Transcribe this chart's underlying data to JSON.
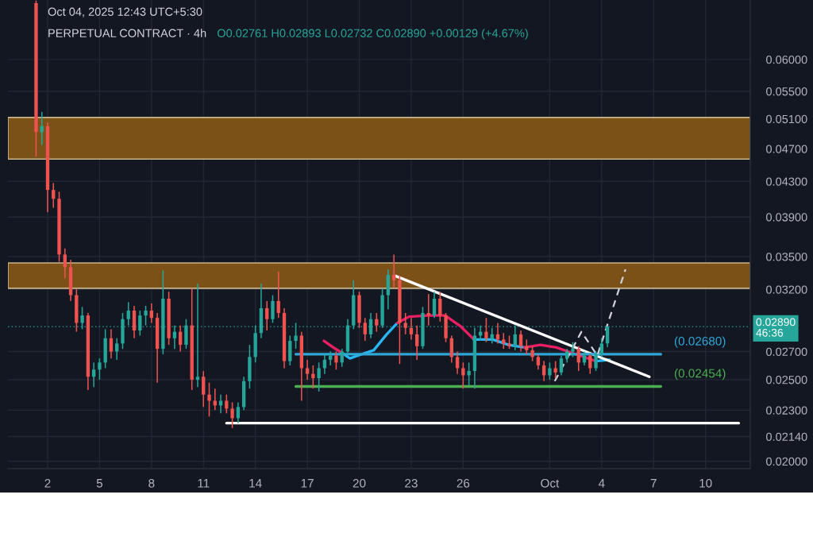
{
  "chart_data": {
    "type": "candlestick",
    "title": "PERPETUAL CONTRACT · 4h",
    "annotations": [
      "Oct 04, 2025 12:43 UTC+5:30",
      "O0.02761 H0.02893 L0.02732 C0.02890 +0.00129 (+4.67%)"
    ],
    "x": [
      "2025-09-01T08:00",
      "2025-09-01T16:00",
      "2025-09-02T00:00",
      "2025-09-02T08:00",
      "2025-09-02T16:00",
      "2025-09-03T00:00",
      "2025-09-03T08:00",
      "2025-09-03T16:00",
      "2025-09-04T00:00",
      "2025-09-04T08:00",
      "2025-09-04T16:00",
      "2025-09-05T00:00",
      "2025-09-05T08:00",
      "2025-09-05T16:00",
      "2025-09-06T00:00",
      "2025-09-06T08:00",
      "2025-09-06T16:00",
      "2025-09-07T00:00",
      "2025-09-07T08:00",
      "2025-09-07T16:00",
      "2025-09-08T00:00",
      "2025-09-08T08:00",
      "2025-09-08T16:00",
      "2025-09-09T00:00",
      "2025-09-09T08:00",
      "2025-09-09T16:00",
      "2025-09-10T00:00",
      "2025-09-10T08:00",
      "2025-09-10T16:00",
      "2025-09-11T00:00",
      "2025-09-11T08:00",
      "2025-09-11T16:00",
      "2025-09-12T00:00",
      "2025-09-12T08:00",
      "2025-09-12T16:00",
      "2025-09-13T00:00",
      "2025-09-13T08:00",
      "2025-09-13T16:00",
      "2025-09-14T00:00",
      "2025-09-14T08:00",
      "2025-09-14T16:00",
      "2025-09-15T00:00",
      "2025-09-15T08:00",
      "2025-09-15T16:00",
      "2025-09-16T00:00",
      "2025-09-16T08:00",
      "2025-09-16T16:00",
      "2025-09-17T00:00",
      "2025-09-17T08:00",
      "2025-09-17T16:00",
      "2025-09-18T00:00",
      "2025-09-18T08:00",
      "2025-09-18T16:00",
      "2025-09-19T00:00",
      "2025-09-19T08:00",
      "2025-09-19T16:00",
      "2025-09-20T00:00",
      "2025-09-20T08:00",
      "2025-09-20T16:00",
      "2025-09-21T00:00",
      "2025-09-21T08:00",
      "2025-09-21T16:00",
      "2025-09-22T00:00",
      "2025-09-22T08:00",
      "2025-09-22T16:00",
      "2025-09-23T00:00",
      "2025-09-23T08:00",
      "2025-09-23T16:00",
      "2025-09-24T00:00",
      "2025-09-24T08:00",
      "2025-09-24T16:00",
      "2025-09-25T00:00",
      "2025-09-25T08:00",
      "2025-09-25T16:00",
      "2025-09-26T00:00",
      "2025-09-26T08:00",
      "2025-09-26T16:00",
      "2025-09-27T00:00",
      "2025-09-27T08:00",
      "2025-09-27T16:00",
      "2025-09-28T00:00",
      "2025-09-28T08:00",
      "2025-09-28T16:00",
      "2025-09-29T00:00",
      "2025-09-29T08:00",
      "2025-09-29T16:00",
      "2025-09-30T00:00",
      "2025-09-30T08:00",
      "2025-09-30T16:00",
      "2025-10-01T00:00",
      "2025-10-01T08:00",
      "2025-10-01T16:00",
      "2025-10-02T00:00",
      "2025-10-02T08:00",
      "2025-10-02T16:00",
      "2025-10-03T00:00",
      "2025-10-03T08:00",
      "2025-10-03T16:00",
      "2025-10-04T00:00",
      "2025-10-04T08:00"
    ],
    "ohlc": [
      [
        0.07,
        0.0705,
        0.046,
        0.0492
      ],
      [
        0.0492,
        0.052,
        0.0475,
        0.05
      ],
      [
        0.05,
        0.0505,
        0.0395,
        0.042
      ],
      [
        0.042,
        0.0428,
        0.04,
        0.041
      ],
      [
        0.041,
        0.0418,
        0.0345,
        0.0352
      ],
      [
        0.0352,
        0.0358,
        0.033,
        0.034
      ],
      [
        0.034,
        0.0347,
        0.031,
        0.0315
      ],
      [
        0.0315,
        0.032,
        0.0285,
        0.0292
      ],
      [
        0.0292,
        0.0305,
        0.0287,
        0.0298
      ],
      [
        0.0298,
        0.03,
        0.0243,
        0.0252
      ],
      [
        0.0252,
        0.0262,
        0.0245,
        0.0257
      ],
      [
        0.0257,
        0.0265,
        0.025,
        0.0262
      ],
      [
        0.0262,
        0.0287,
        0.0258,
        0.028
      ],
      [
        0.028,
        0.0287,
        0.0265,
        0.027
      ],
      [
        0.027,
        0.028,
        0.0264,
        0.0276
      ],
      [
        0.0276,
        0.03,
        0.0272,
        0.0295
      ],
      [
        0.0295,
        0.0309,
        0.029,
        0.0302
      ],
      [
        0.0302,
        0.0306,
        0.028,
        0.0286
      ],
      [
        0.0286,
        0.0302,
        0.0282,
        0.0298
      ],
      [
        0.0298,
        0.0306,
        0.029,
        0.0302
      ],
      [
        0.0302,
        0.0308,
        0.0292,
        0.0296
      ],
      [
        0.0296,
        0.03,
        0.0248,
        0.0272
      ],
      [
        0.0272,
        0.0337,
        0.0268,
        0.0312
      ],
      [
        0.0312,
        0.0318,
        0.0275,
        0.028
      ],
      [
        0.028,
        0.029,
        0.0272,
        0.0285
      ],
      [
        0.0285,
        0.029,
        0.027,
        0.0275
      ],
      [
        0.0275,
        0.0295,
        0.0272,
        0.029
      ],
      [
        0.029,
        0.0321,
        0.0243,
        0.025
      ],
      [
        0.025,
        0.0325,
        0.0245,
        0.0252
      ],
      [
        0.0252,
        0.0256,
        0.0232,
        0.024
      ],
      [
        0.024,
        0.0248,
        0.0226,
        0.0236
      ],
      [
        0.0236,
        0.0244,
        0.023,
        0.0233
      ],
      [
        0.0233,
        0.024,
        0.0228,
        0.0236
      ],
      [
        0.0236,
        0.024,
        0.0228,
        0.0231
      ],
      [
        0.0231,
        0.0235,
        0.0219,
        0.0225
      ],
      [
        0.0225,
        0.0235,
        0.0222,
        0.0232
      ],
      [
        0.0232,
        0.0252,
        0.023,
        0.0249
      ],
      [
        0.0249,
        0.0275,
        0.0244,
        0.0266
      ],
      [
        0.0266,
        0.029,
        0.0262,
        0.0284
      ],
      [
        0.0284,
        0.0325,
        0.028,
        0.0304
      ],
      [
        0.0304,
        0.031,
        0.0286,
        0.0295
      ],
      [
        0.0295,
        0.0315,
        0.0292,
        0.031
      ],
      [
        0.031,
        0.0336,
        0.0296,
        0.03
      ],
      [
        0.03,
        0.0304,
        0.0258,
        0.0263
      ],
      [
        0.0263,
        0.0282,
        0.026,
        0.0278
      ],
      [
        0.0278,
        0.0292,
        0.0272,
        0.0282
      ],
      [
        0.0282,
        0.0285,
        0.0236,
        0.0258
      ],
      [
        0.0258,
        0.0264,
        0.025,
        0.0254
      ],
      [
        0.0254,
        0.026,
        0.0244,
        0.0251
      ],
      [
        0.0251,
        0.0262,
        0.0242,
        0.0258
      ],
      [
        0.0258,
        0.0268,
        0.0254,
        0.0264
      ],
      [
        0.0264,
        0.027,
        0.026,
        0.0267
      ],
      [
        0.0267,
        0.027,
        0.0257,
        0.0262
      ],
      [
        0.0262,
        0.0272,
        0.0259,
        0.027
      ],
      [
        0.027,
        0.0295,
        0.0268,
        0.029
      ],
      [
        0.029,
        0.0328,
        0.0287,
        0.0315
      ],
      [
        0.0315,
        0.0318,
        0.0288,
        0.0292
      ],
      [
        0.0292,
        0.0296,
        0.0278,
        0.0283
      ],
      [
        0.0283,
        0.03,
        0.028,
        0.0295
      ],
      [
        0.0295,
        0.03,
        0.0285,
        0.029
      ],
      [
        0.029,
        0.0321,
        0.0288,
        0.0315
      ],
      [
        0.0315,
        0.0338,
        0.0303,
        0.0333
      ],
      [
        0.0333,
        0.0352,
        0.0322,
        0.0328
      ],
      [
        0.0328,
        0.0332,
        0.0261,
        0.0292
      ],
      [
        0.0292,
        0.03,
        0.0283,
        0.0288
      ],
      [
        0.0288,
        0.0296,
        0.0279,
        0.0283
      ],
      [
        0.0283,
        0.029,
        0.0264,
        0.0274
      ],
      [
        0.0274,
        0.0305,
        0.0272,
        0.03
      ],
      [
        0.03,
        0.0316,
        0.029,
        0.0298
      ],
      [
        0.0298,
        0.0318,
        0.0296,
        0.0312
      ],
      [
        0.0312,
        0.0318,
        0.0293,
        0.0298
      ],
      [
        0.0298,
        0.03,
        0.0277,
        0.028
      ],
      [
        0.028,
        0.0282,
        0.0262,
        0.0266
      ],
      [
        0.0266,
        0.027,
        0.0254,
        0.0258
      ],
      [
        0.0258,
        0.0262,
        0.0244,
        0.0253
      ],
      [
        0.0253,
        0.0262,
        0.0246,
        0.0256
      ],
      [
        0.0256,
        0.0288,
        0.0244,
        0.0282
      ],
      [
        0.0282,
        0.029,
        0.0278,
        0.0285
      ],
      [
        0.0285,
        0.0296,
        0.0277,
        0.028
      ],
      [
        0.028,
        0.0288,
        0.0276,
        0.0283
      ],
      [
        0.0283,
        0.0292,
        0.0276,
        0.0279
      ],
      [
        0.0279,
        0.0284,
        0.0272,
        0.0276
      ],
      [
        0.0276,
        0.0282,
        0.0272,
        0.0274
      ],
      [
        0.0274,
        0.029,
        0.0271,
        0.0283
      ],
      [
        0.0283,
        0.0286,
        0.027,
        0.0274
      ],
      [
        0.0274,
        0.0279,
        0.0268,
        0.0271
      ],
      [
        0.0271,
        0.0274,
        0.0263,
        0.0266
      ],
      [
        0.0266,
        0.0268,
        0.0257,
        0.026
      ],
      [
        0.026,
        0.0263,
        0.0249,
        0.0253
      ],
      [
        0.0253,
        0.0262,
        0.025,
        0.0258
      ],
      [
        0.0258,
        0.0263,
        0.0251,
        0.0255
      ],
      [
        0.0255,
        0.0267,
        0.0253,
        0.0265
      ],
      [
        0.0265,
        0.0272,
        0.0262,
        0.027
      ],
      [
        0.027,
        0.0277,
        0.0266,
        0.0272
      ],
      [
        0.0272,
        0.0274,
        0.0256,
        0.0262
      ],
      [
        0.0262,
        0.027,
        0.026,
        0.0267
      ],
      [
        0.0267,
        0.0268,
        0.0254,
        0.0258
      ],
      [
        0.0258,
        0.027,
        0.0256,
        0.0268
      ],
      [
        0.0268,
        0.028,
        0.0266,
        0.0276
      ],
      [
        0.02761,
        0.02893,
        0.02732,
        0.0289
      ]
    ],
    "colors": [
      "#ef5350",
      "#26a69a",
      "#ef5350",
      "#ef5350",
      "#ef5350",
      "#ef5350",
      "#ef5350",
      "#ef5350",
      "#26a69a",
      "#ef5350",
      "#26a69a",
      "#26a69a",
      "#26a69a",
      "#ef5350",
      "#26a69a",
      "#26a69a",
      "#26a69a",
      "#ef5350",
      "#26a69a",
      "#26a69a",
      "#ef5350",
      "#ef5350",
      "#26a69a",
      "#ef5350",
      "#26a69a",
      "#ef5350",
      "#26a69a",
      "#ef5350",
      "#26a69a",
      "#ef5350",
      "#ef5350",
      "#ef5350",
      "#26a69a",
      "#ef5350",
      "#ef5350",
      "#26a69a",
      "#26a69a",
      "#26a69a",
      "#26a69a",
      "#26a69a",
      "#ef5350",
      "#26a69a",
      "#ef5350",
      "#ef5350",
      "#26a69a",
      "#26a69a",
      "#ef5350",
      "#ef5350",
      "#ef5350",
      "#26a69a",
      "#26a69a",
      "#26a69a",
      "#ef5350",
      "#26a69a",
      "#26a69a",
      "#26a69a",
      "#ef5350",
      "#ef5350",
      "#26a69a",
      "#ef5350",
      "#26a69a",
      "#26a69a",
      "#ef5350",
      "#ef5350",
      "#ef5350",
      "#ef5350",
      "#ef5350",
      "#26a69a",
      "#ef5350",
      "#26a69a",
      "#ef5350",
      "#ef5350",
      "#ef5350",
      "#ef5350",
      "#ef5350",
      "#26a69a",
      "#26a69a",
      "#26a69a",
      "#ef5350",
      "#26a69a",
      "#ef5350",
      "#ef5350",
      "#ef5350",
      "#26a69a",
      "#ef5350",
      "#ef5350",
      "#ef5350",
      "#ef5350",
      "#ef5350",
      "#26a69a",
      "#ef5350",
      "#26a69a",
      "#26a69a",
      "#26a69a",
      "#ef5350",
      "#26a69a",
      "#ef5350",
      "#26a69a",
      "#26a69a",
      "#26a69a"
    ],
    "series": [
      {
        "type": "line",
        "color": "#e91e63",
        "x": [
          "2025-09-17T23:00",
          "2025-09-18T12:00",
          "2025-09-19T00:00"
        ],
        "values": [
          0.0278,
          0.0273,
          0.0269
        ]
      },
      {
        "type": "line",
        "color": "#29b6f6",
        "x": [
          "2025-09-19T00:00",
          "2025-09-19T11:00",
          "2025-09-20T03:00",
          "2025-09-20T20:00",
          "2025-09-21T14:00",
          "2025-09-22T05:00"
        ],
        "values": [
          0.0269,
          0.0265,
          0.0268,
          0.0271,
          0.0283,
          0.0292
        ]
      },
      {
        "type": "line",
        "color": "#e91e63",
        "x": [
          "2025-09-22T05:00",
          "2025-09-22T21:00",
          "2025-09-24T01:00",
          "2025-09-24T23:00",
          "2025-09-25T21:00",
          "2025-09-26T15:00"
        ],
        "values": [
          0.0292,
          0.0297,
          0.0298,
          0.0298,
          0.0289,
          0.0279
        ]
      },
      {
        "type": "line",
        "color": "#29b6f6",
        "x": [
          "2025-09-26T15:00",
          "2025-09-27T17:00",
          "2025-09-28T15:00",
          "2025-09-29T13:00"
        ],
        "values": [
          0.0279,
          0.0279,
          0.0275,
          0.0273
        ]
      },
      {
        "type": "line",
        "color": "#e91e63",
        "x": [
          "2025-09-29T13:00",
          "2025-09-30T11:00",
          "2025-10-01T09:00",
          "2025-10-02T07:00",
          "2025-10-03T16:00"
        ],
        "values": [
          0.0273,
          0.0275,
          0.0273,
          0.0269,
          0.0263
        ]
      },
      {
        "type": "line",
        "color": "#29b6f6",
        "x": [
          "2025-10-03T16:00",
          "2025-10-04T11:00"
        ],
        "values": [
          0.0263,
          0.0264
        ]
      },
      {
        "type": "line",
        "color": "#ffffff",
        "x": [
          "2025-09-22T02:00",
          "2025-10-06T18:00"
        ],
        "values": [
          0.0332,
          0.0252
        ]
      },
      {
        "type": "line",
        "color": "#ffffff",
        "x": [
          "2025-09-12T08:00",
          "2025-10-11T22:00"
        ],
        "values": [
          0.0222,
          0.0222
        ]
      },
      {
        "type": "line",
        "name": "(0.02680)",
        "color": "#2fa8d8",
        "x": [
          "2025-09-16T08:00",
          "2025-10-07T10:00"
        ],
        "values": [
          0.0268,
          0.0268
        ]
      },
      {
        "type": "line",
        "name": "(0.02454)",
        "color": "#4caf50",
        "x": [
          "2025-09-16T08:00",
          "2025-10-07T10:00"
        ],
        "values": [
          0.02454,
          0.02454
        ]
      },
      {
        "type": "line",
        "color": "#d1d4dc",
        "line_style": "dashed",
        "x": [
          "2025-10-01T07:00",
          "2025-10-02T20:00",
          "2025-10-03T18:00",
          "2025-10-05T09:00"
        ],
        "values": [
          0.0249,
          0.0285,
          0.0267,
          0.0338
        ]
      }
    ],
    "ref_lines": [
      {
        "axis": "y",
        "value": 0.0289,
        "label": "0.02890\n46:36",
        "color": "#26a69a",
        "line_style": "dotted"
      }
    ],
    "bands": [
      {
        "axis": "y",
        "from": 0.0321,
        "to": 0.0344,
        "color": "#7b5117"
      },
      {
        "axis": "y",
        "from": 0.0457,
        "to": 0.0512,
        "color": "#7b5117"
      }
    ],
    "xlim": [
      "2025-08-30T17:00",
      "2025-10-12T14:00"
    ],
    "xticks": [
      {
        "value": "2025-09-02",
        "label": "2"
      },
      {
        "value": "2025-09-05",
        "label": "5"
      },
      {
        "value": "2025-09-08",
        "label": "8"
      },
      {
        "value": "2025-09-11",
        "label": "11"
      },
      {
        "value": "2025-09-14",
        "label": "14"
      },
      {
        "value": "2025-09-17",
        "label": "17"
      },
      {
        "value": "2025-09-20",
        "label": "20"
      },
      {
        "value": "2025-09-23",
        "label": "23"
      },
      {
        "value": "2025-09-26",
        "label": "26"
      },
      {
        "value": "2025-10-01",
        "label": "Oct"
      },
      {
        "value": "2025-10-04",
        "label": "4"
      },
      {
        "value": "2025-10-07",
        "label": "7"
      },
      {
        "value": "2025-10-10",
        "label": "10"
      }
    ],
    "ylim": [
      0.0196,
      0.0706
    ],
    "yticks": [
      {
        "value": 0.02,
        "label": "0.02000"
      },
      {
        "value": 0.0214,
        "label": "0.02140"
      },
      {
        "value": 0.023,
        "label": "0.02300"
      },
      {
        "value": 0.025,
        "label": "0.02500"
      },
      {
        "value": 0.027,
        "label": "0.02700"
      },
      {
        "value": 0.032,
        "label": "0.03200"
      },
      {
        "value": 0.035,
        "label": "0.03500"
      },
      {
        "value": 0.039,
        "label": "0.03900"
      },
      {
        "value": 0.043,
        "label": "0.04300"
      },
      {
        "value": 0.047,
        "label": "0.04700"
      },
      {
        "value": 0.051,
        "label": "0.05100"
      },
      {
        "value": 0.055,
        "label": "0.05500"
      },
      {
        "value": 0.06,
        "label": "0.06000"
      }
    ],
    "log": true,
    "grid": true
  }
}
